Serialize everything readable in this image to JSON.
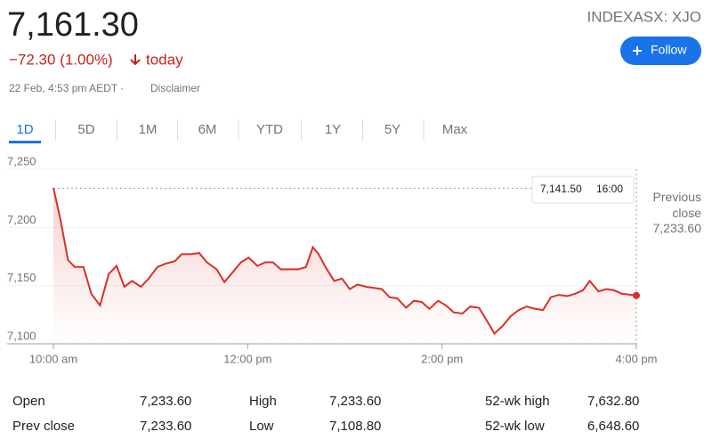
{
  "header": {
    "price": "7,161.30",
    "change": "−72.30 (1.00%)",
    "period": "today",
    "timestamp": "22 Feb, 4:53 pm AEDT ·",
    "disclaimer": "Disclaimer",
    "ticker": "INDEXASX: XJO",
    "follow_button": "Follow"
  },
  "tabs": {
    "items": [
      "1D",
      "5D",
      "1M",
      "6M",
      "YTD",
      "1Y",
      "5Y",
      "Max"
    ],
    "active": 0
  },
  "chart_data": {
    "type": "line",
    "color": "#d93025",
    "x": [
      10.0,
      10.07,
      10.15,
      10.22,
      10.31,
      10.39,
      10.48,
      10.57,
      10.65,
      10.73,
      10.81,
      10.9,
      10.98,
      11.07,
      11.16,
      11.25,
      11.32,
      11.41,
      11.5,
      11.58,
      11.68,
      11.76,
      11.85,
      11.93,
      12.01,
      12.1,
      12.18,
      12.26,
      12.34,
      12.44,
      12.52,
      12.6,
      12.67,
      12.73,
      12.8,
      12.89,
      12.97,
      13.05,
      13.13,
      13.22,
      13.3,
      13.38,
      13.46,
      13.54,
      13.63,
      13.71,
      13.79,
      13.87,
      13.96,
      14.04,
      14.12,
      14.21,
      14.29,
      14.38,
      14.46,
      14.54,
      14.62,
      14.71,
      14.79,
      14.87,
      14.96,
      15.04,
      15.12,
      15.2,
      15.29,
      15.37,
      15.45,
      15.52,
      15.61,
      15.69,
      15.77,
      15.85,
      16.0
    ],
    "values": [
      7234,
      7208,
      7172,
      7166,
      7166,
      7143,
      7133,
      7160,
      7167,
      7149,
      7154,
      7149,
      7156,
      7166,
      7169,
      7171,
      7177,
      7177,
      7178,
      7170,
      7164,
      7153,
      7162,
      7170,
      7174,
      7167,
      7170,
      7170,
      7164,
      7164,
      7164,
      7166,
      7183,
      7177,
      7166,
      7154,
      7156,
      7147,
      7151,
      7149,
      7148,
      7147,
      7140,
      7139,
      7131,
      7137,
      7136,
      7130,
      7137,
      7133,
      7127,
      7126,
      7132,
      7131,
      7120,
      7108.8,
      7115,
      7124,
      7129,
      7132,
      7130,
      7129,
      7140,
      7142,
      7141,
      7143,
      7146,
      7154,
      7145,
      7147,
      7146,
      7143,
      7141.5
    ],
    "xlim": [
      10,
      16
    ],
    "ylim": [
      7100,
      7250
    ],
    "xticks": [
      {
        "value": 10,
        "label": "10:00 am"
      },
      {
        "value": 12,
        "label": "12:00 pm"
      },
      {
        "value": 14,
        "label": "2:00 pm"
      },
      {
        "value": 16,
        "label": "4:00 pm"
      }
    ],
    "yticks": [
      {
        "value": 7100,
        "label": "7,100"
      },
      {
        "value": 7150,
        "label": "7,150"
      },
      {
        "value": 7200,
        "label": "7,200"
      },
      {
        "value": 7250,
        "label": "7,250"
      }
    ],
    "grid": true,
    "previous_close": {
      "label": "Previous close",
      "value": 7233.6,
      "value_label": "7,233.60"
    },
    "tooltip": {
      "value": "7,141.50",
      "time": "16:00"
    }
  },
  "stats": {
    "rows": [
      [
        "Open",
        "7,233.60",
        "High",
        "7,233.60",
        "52-wk high",
        "7,632.80"
      ],
      [
        "Prev close",
        "7,233.60",
        "Low",
        "7,108.80",
        "52-wk low",
        "6,648.60"
      ]
    ]
  }
}
